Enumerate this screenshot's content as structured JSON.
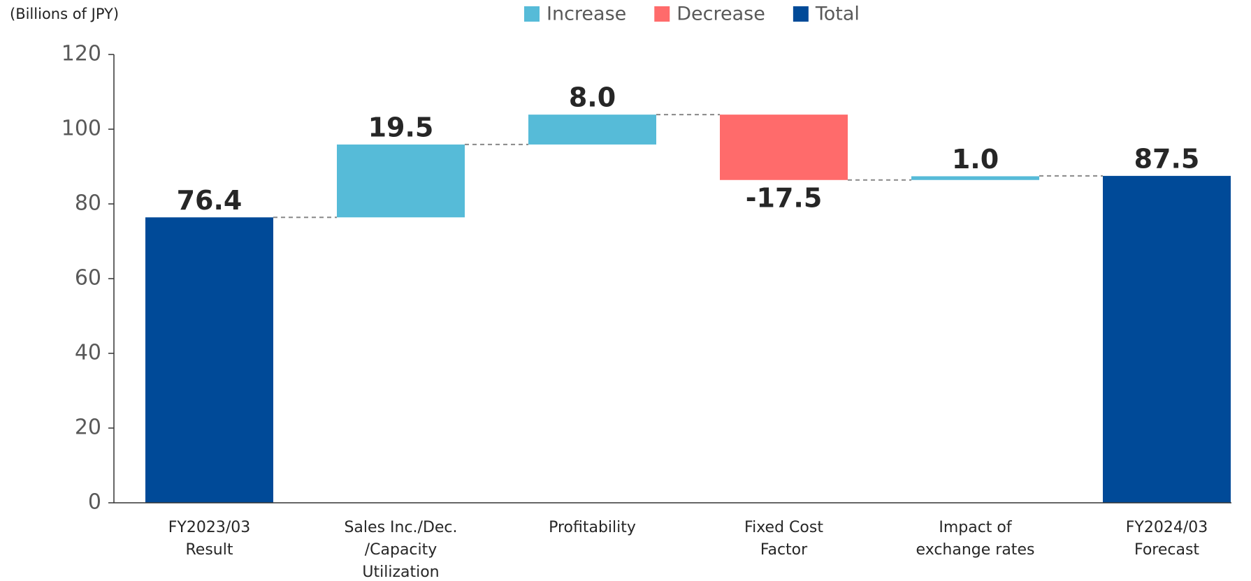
{
  "chart_data": {
    "type": "waterfall",
    "unit_label": "(Billions of JPY)",
    "categories": [
      [
        "FY2023/03",
        "Result"
      ],
      [
        "Sales Inc./Dec.",
        "/Capacity",
        "Utilization"
      ],
      [
        "Profitability"
      ],
      [
        "Fixed Cost",
        "Factor"
      ],
      [
        "Impact of",
        "exchange rates"
      ],
      [
        "FY2024/03",
        "Forecast"
      ]
    ],
    "measures": [
      "total",
      "increase",
      "increase",
      "decrease",
      "increase",
      "total"
    ],
    "values": [
      76.4,
      19.5,
      8.0,
      -17.5,
      1.0,
      87.5
    ],
    "value_labels": [
      "76.4",
      "19.5",
      "8.0",
      "-17.5",
      "1.0",
      "87.5"
    ],
    "legend": [
      {
        "name": "Increase",
        "measure": "increase",
        "color": "#56bbd8"
      },
      {
        "name": "Decrease",
        "measure": "decrease",
        "color": "#ff6b6b"
      },
      {
        "name": "Total",
        "measure": "total",
        "color": "#004a98"
      }
    ],
    "ylim": [
      0,
      120
    ],
    "yticks": [
      0,
      20,
      40,
      60,
      80,
      100,
      120
    ]
  }
}
